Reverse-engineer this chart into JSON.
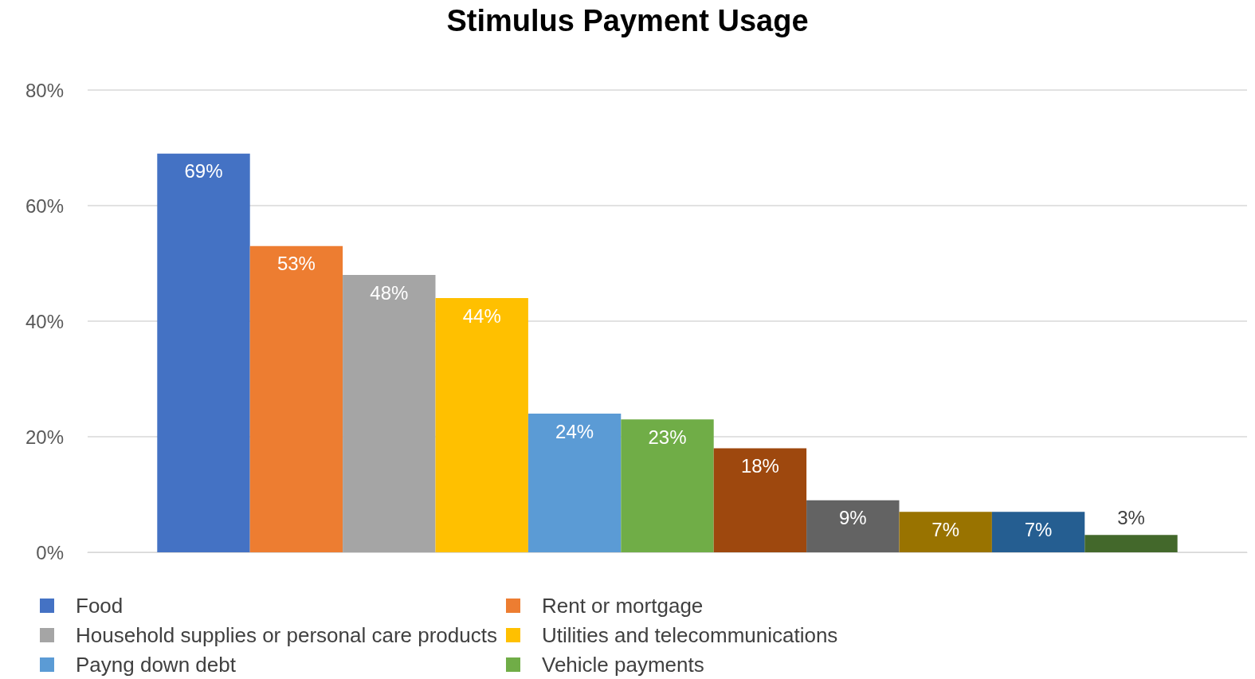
{
  "chart_data": {
    "type": "bar",
    "title": "Stimulus Payment Usage",
    "categories": [
      null
    ],
    "series": [
      {
        "name": "Food",
        "color": "#4472c4",
        "values": [
          69
        ],
        "value_labels": [
          "69%"
        ]
      },
      {
        "name": "Rent or mortgage",
        "color": "#ed7d31",
        "values": [
          53
        ],
        "value_labels": [
          "53%"
        ]
      },
      {
        "name": "Household supplies or personal care products",
        "color": "#a5a5a5",
        "values": [
          48
        ],
        "value_labels": [
          "48%"
        ]
      },
      {
        "name": "Utilities and telecommunications",
        "color": "#ffc000",
        "values": [
          44
        ],
        "value_labels": [
          "44%"
        ]
      },
      {
        "name": "Payng down debt",
        "color": "#5b9bd5",
        "values": [
          24
        ],
        "value_labels": [
          "24%"
        ]
      },
      {
        "name": "Vehicle payments",
        "color": "#70ad47",
        "values": [
          23
        ],
        "value_labels": [
          "23%"
        ]
      },
      {
        "color": "#9e480e",
        "values": [
          18
        ],
        "value_labels": [
          "18%"
        ]
      },
      {
        "color": "#636363",
        "values": [
          9
        ],
        "value_labels": [
          "9%"
        ]
      },
      {
        "color": "#997300",
        "values": [
          7
        ],
        "value_labels": [
          "7%"
        ]
      },
      {
        "color": "#255e91",
        "values": [
          7
        ],
        "value_labels": [
          "7%"
        ]
      },
      {
        "color": "#43682b",
        "values": [
          3
        ],
        "value_labels": [
          "3%"
        ]
      }
    ],
    "ylim": [
      0,
      80
    ],
    "yticks": [
      {
        "value": 0,
        "label": "0%"
      },
      {
        "value": 20,
        "label": "20%"
      },
      {
        "value": 40,
        "label": "40%"
      },
      {
        "value": 60,
        "label": "60%"
      },
      {
        "value": 80,
        "label": "80%"
      }
    ],
    "grid": "y",
    "legend": "bottom"
  }
}
